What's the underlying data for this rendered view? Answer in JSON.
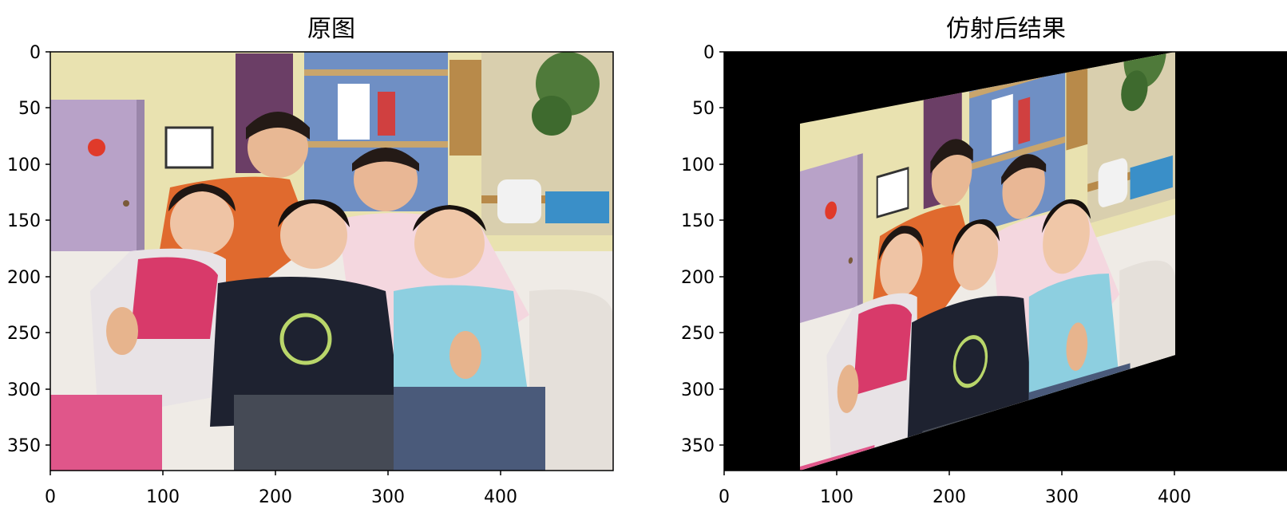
{
  "figure": {
    "panels": [
      {
        "title": "原图",
        "x_ticks": [
          "0",
          "100",
          "200",
          "300",
          "400"
        ],
        "y_ticks": [
          "0",
          "50",
          "100",
          "150",
          "200",
          "250",
          "300",
          "350"
        ]
      },
      {
        "title": "仿射后结果",
        "x_ticks": [
          "0",
          "100",
          "200",
          "300",
          "400"
        ],
        "y_ticks": [
          "0",
          "50",
          "100",
          "150",
          "200",
          "250",
          "300",
          "350"
        ]
      }
    ]
  },
  "colors": {
    "wall": "#e9e2b0",
    "door": "#b8a2c8",
    "shelf": "#6f8fc4",
    "sofa": "#efebe6",
    "black_fill": "#000000"
  }
}
